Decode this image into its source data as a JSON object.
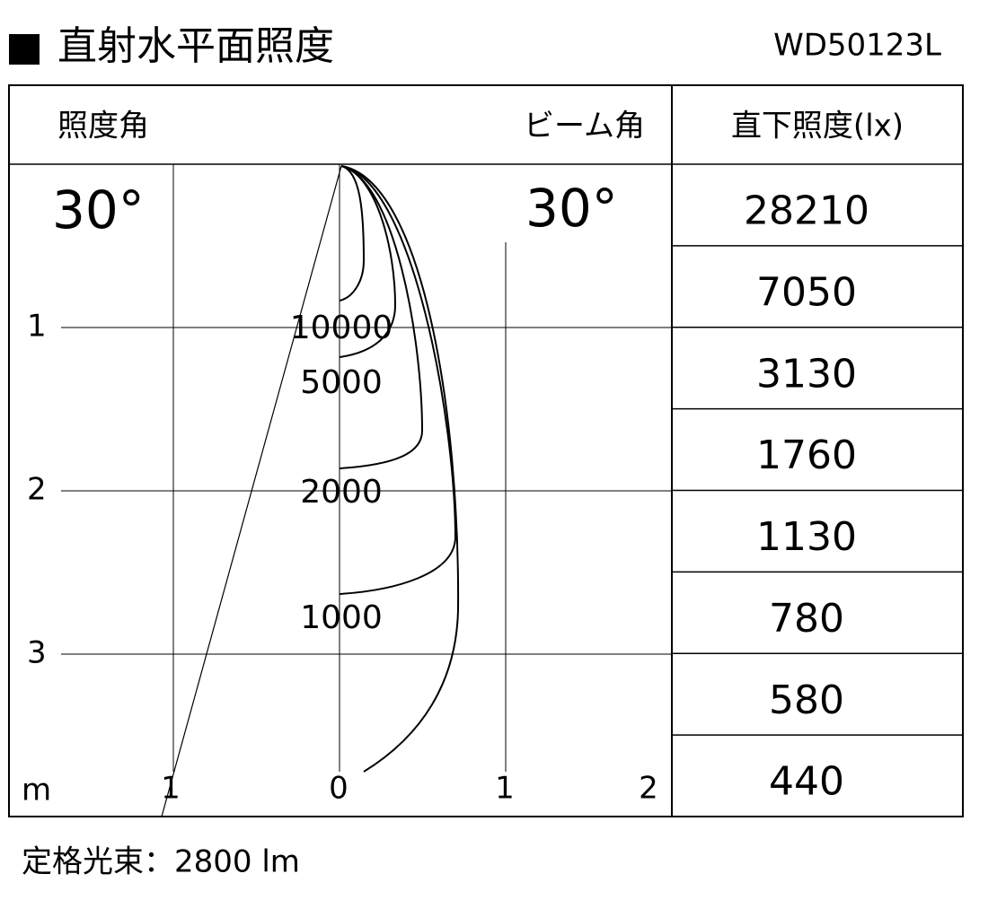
{
  "header": {
    "title": "直射水平面照度",
    "model": "WD50123L"
  },
  "table": {
    "left_header": "照度角",
    "beam_header": "ビーム角",
    "right_header": "直下照度(lx)",
    "left_angle": "30°",
    "beam_angle": "30°",
    "rows": [
      28210,
      7050,
      3130,
      1760,
      1130,
      780,
      580,
      440
    ]
  },
  "diagram": {
    "y_labels": [
      1,
      2,
      3
    ],
    "unit": "m",
    "x_labels": [
      1,
      0,
      1,
      2
    ],
    "contour_labels": [
      10000,
      5000,
      2000,
      1000
    ]
  },
  "footer": "定格光束：2800 lm"
}
